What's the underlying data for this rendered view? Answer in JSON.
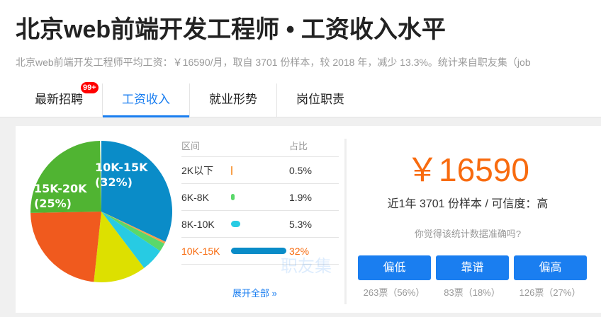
{
  "header": {
    "title": "北京web前端开发工程师 • 工资收入水平",
    "subtitle": "北京web前端开发工程师平均工资：￥16590/月，取自 3701 份样本，较 2018 年，减少 13.3%。统计来自职友集（job"
  },
  "tabs": [
    {
      "label": "最新招聘",
      "badge": "99+"
    },
    {
      "label": "工资收入",
      "active": true
    },
    {
      "label": "就业形势"
    },
    {
      "label": "岗位职责"
    }
  ],
  "table": {
    "headers": [
      "区间",
      "占比"
    ],
    "rows": [
      {
        "range": "2K以下",
        "pct": "0.5%",
        "value": 0.5,
        "color": "#f8a04a"
      },
      {
        "range": "6K-8K",
        "pct": "1.9%",
        "value": 1.9,
        "color": "#5ad86a"
      },
      {
        "range": "8K-10K",
        "pct": "5.3%",
        "value": 5.3,
        "color": "#27cbe3"
      },
      {
        "range": "10K-15K",
        "pct": "32%",
        "value": 32,
        "color": "#0a8cc8",
        "highlight": true
      }
    ],
    "expand": "展开全部 »",
    "watermark": "职友集"
  },
  "chart_data": {
    "type": "pie",
    "slices": [
      {
        "label": "10K-15K\n(32%)",
        "value": 32,
        "color": "#0a8cc8",
        "shown": [
          "10K-15K",
          "(32%)"
        ]
      },
      {
        "value": 0.5,
        "color": "#f8a04a"
      },
      {
        "value": 1.9,
        "color": "#5ad86a"
      },
      {
        "value": 5.3,
        "color": "#27cbe3"
      },
      {
        "value": 12,
        "color": "#dde000"
      },
      {
        "value": 23,
        "color": "#f05a1e"
      },
      {
        "label": "15K-20K\n(25%)",
        "value": 25,
        "color": "#50b432",
        "shown": [
          "15K-20K",
          "(25%)"
        ]
      }
    ]
  },
  "summary": {
    "salary": "￥16590",
    "meta": "近1年 3701 份样本 / 可信度：高",
    "question": "你觉得该统计数据准确吗?",
    "votes": [
      {
        "label": "偏低",
        "count": "263票（56%）"
      },
      {
        "label": "靠谱",
        "count": "83票（18%）"
      },
      {
        "label": "偏高",
        "count": "126票（27%）"
      }
    ]
  }
}
